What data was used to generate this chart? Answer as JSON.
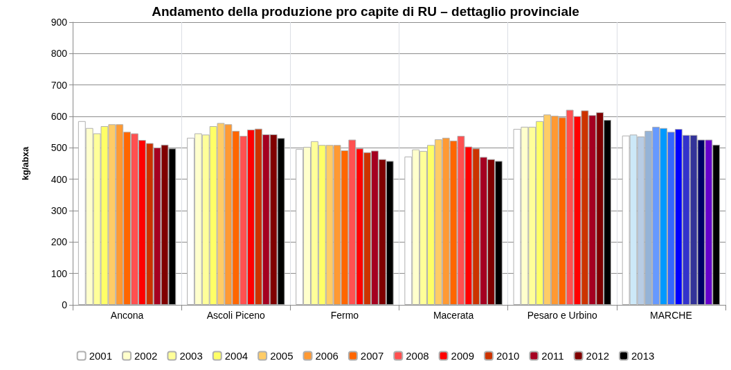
{
  "chart_data": {
    "type": "bar",
    "title": "Andamento della produzione pro capite di RU – dettaglio provinciale",
    "ylabel": "kg/abxa",
    "categories": [
      "Ancona",
      "Ascoli Piceno",
      "Fermo",
      "Macerata",
      "Pesaro e Urbino",
      "MARCHE"
    ],
    "series": [
      {
        "name": "2001",
        "color": "#ffffff",
        "colors": [
          "#ffffff",
          "#ffffff",
          "#ffffff",
          "#ffffff",
          "#ffffff",
          "#ffffff"
        ],
        "values": [
          585,
          532,
          496,
          472,
          560,
          539
        ]
      },
      {
        "name": "2002",
        "color": "#ffffcc",
        "colors": [
          "#ffffcc",
          "#ffffcc",
          "#ffffcc",
          "#ffffcc",
          "#ffffcc",
          "#cce8f8"
        ],
        "values": [
          563,
          546,
          503,
          495,
          567,
          542
        ]
      },
      {
        "name": "2003",
        "color": "#ffff99",
        "colors": [
          "#ffff99",
          "#ffff99",
          "#ffff99",
          "#ffff99",
          "#ffff99",
          "#b8cce4"
        ],
        "values": [
          546,
          542,
          521,
          490,
          567,
          536
        ]
      },
      {
        "name": "2004",
        "color": "#ffff66",
        "colors": [
          "#ffff66",
          "#ffff66",
          "#ffff66",
          "#ffff66",
          "#ffff66",
          "#95b3d7"
        ],
        "values": [
          569,
          569,
          509,
          509,
          585,
          554
        ]
      },
      {
        "name": "2005",
        "color": "#ffcc66",
        "colors": [
          "#ffcc66",
          "#ffcc66",
          "#ffcc66",
          "#ffcc66",
          "#ffcc66",
          "#6699ff"
        ],
        "values": [
          575,
          579,
          509,
          527,
          606,
          567
        ]
      },
      {
        "name": "2006",
        "color": "#ff9933",
        "colors": [
          "#ff9933",
          "#ff9933",
          "#ff9933",
          "#ff9933",
          "#ff9933",
          "#0099ff"
        ],
        "values": [
          575,
          575,
          509,
          532,
          602,
          563
        ]
      },
      {
        "name": "2007",
        "color": "#ff6600",
        "colors": [
          "#ff6600",
          "#ff6600",
          "#ff6600",
          "#ff6600",
          "#ff6600",
          "#3366ff"
        ],
        "values": [
          551,
          554,
          492,
          523,
          597,
          551
        ]
      },
      {
        "name": "2008",
        "color": "#ff5050",
        "colors": [
          "#ff5050",
          "#ff5050",
          "#ff5050",
          "#ff5050",
          "#ff5050",
          "#0000ff"
        ],
        "values": [
          546,
          538,
          526,
          538,
          621,
          560
        ]
      },
      {
        "name": "2009",
        "color": "#ff0000",
        "colors": [
          "#ff0000",
          "#ff0000",
          "#ff0000",
          "#ff0000",
          "#ff0000",
          "#3333cc"
        ],
        "values": [
          525,
          558,
          498,
          504,
          601,
          541
        ]
      },
      {
        "name": "2010",
        "color": "#cc3300",
        "colors": [
          "#cc3300",
          "#cc3300",
          "#cc3300",
          "#cc3300",
          "#cc3300",
          "#333399"
        ],
        "values": [
          515,
          561,
          486,
          498,
          619,
          541
        ]
      },
      {
        "name": "2011",
        "color": "#a50021",
        "colors": [
          "#a50021",
          "#a50021",
          "#a50021",
          "#a50021",
          "#a50021",
          "#000066"
        ],
        "values": [
          501,
          543,
          491,
          471,
          604,
          526
        ]
      },
      {
        "name": "2012",
        "color": "#800000",
        "colors": [
          "#800000",
          "#800000",
          "#800000",
          "#800000",
          "#800000",
          "#6600cc"
        ],
        "values": [
          510,
          543,
          464,
          464,
          613,
          526
        ]
      },
      {
        "name": "2013",
        "color": "#000000",
        "colors": [
          "#000000",
          "#000000",
          "#000000",
          "#000000",
          "#000000",
          "#000000"
        ],
        "values": [
          498,
          531,
          458,
          458,
          589,
          510
        ]
      }
    ],
    "ylim": [
      0,
      900
    ],
    "yticks": [
      0,
      100,
      200,
      300,
      400,
      500,
      600,
      700,
      800,
      900
    ],
    "grid": true,
    "legend": "bottom"
  }
}
